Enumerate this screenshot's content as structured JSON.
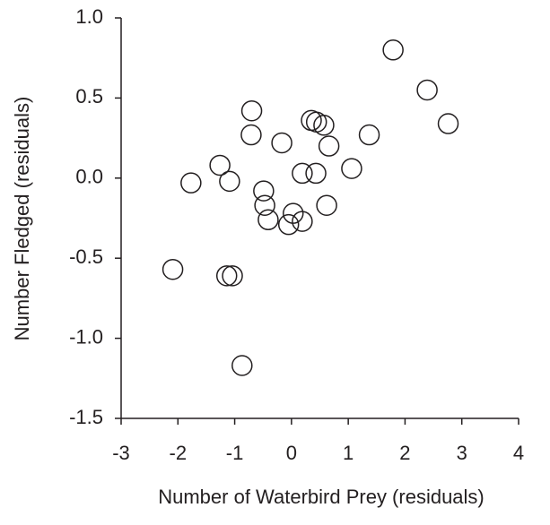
{
  "chart_data": {
    "type": "scatter",
    "xlabel": "Number of Waterbird Prey (residuals)",
    "ylabel": "Number Fledged (residuals)",
    "x": [
      1.79,
      2.39,
      2.76,
      -0.7,
      -0.71,
      -0.17,
      0.35,
      0.44,
      0.57,
      1.37,
      0.66,
      1.06,
      -1.26,
      -1.77,
      -1.09,
      0.19,
      0.43,
      -0.49,
      -0.47,
      -0.41,
      0.03,
      -0.05,
      0.19,
      0.62,
      -2.09,
      -1.14,
      -1.04,
      -0.87
    ],
    "values": [
      0.8,
      0.55,
      0.34,
      0.42,
      0.27,
      0.22,
      0.36,
      0.35,
      0.33,
      0.27,
      0.2,
      0.06,
      0.08,
      -0.03,
      -0.02,
      0.03,
      0.03,
      -0.08,
      -0.17,
      -0.26,
      -0.22,
      -0.29,
      -0.27,
      -0.17,
      -0.57,
      -0.61,
      -0.61,
      -1.17
    ],
    "color": "#231f20",
    "xlim": [
      -3,
      4
    ],
    "xticks": [
      -3,
      -2,
      -1,
      0,
      1,
      2,
      3,
      4
    ],
    "ylim": [
      -1.5,
      1.0
    ],
    "yticks": [
      {
        "value": 1.0,
        "label": "1.0"
      },
      0.5,
      {
        "value": 0.0,
        "label": "0.0"
      },
      -0.5,
      {
        "value": -1.0,
        "label": "-1.0"
      },
      -1.5
    ],
    "grid": false
  }
}
